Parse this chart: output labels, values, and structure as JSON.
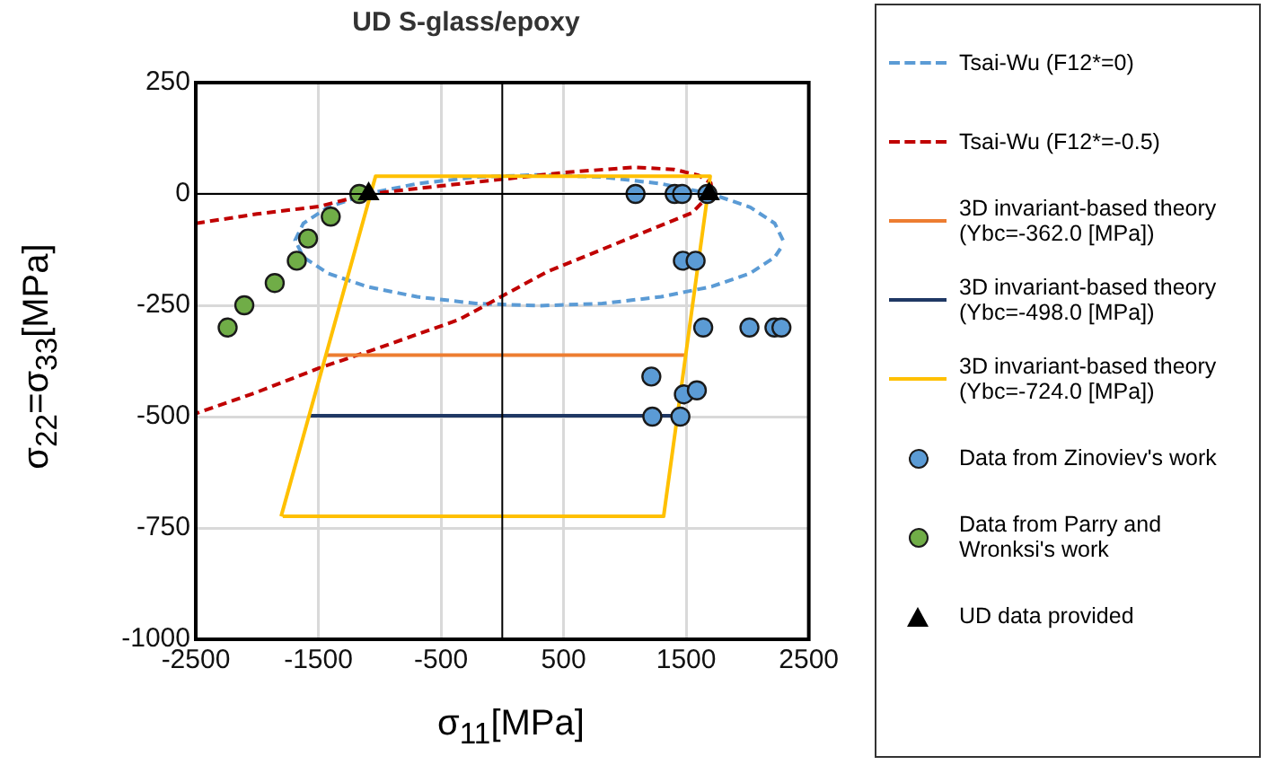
{
  "chart_data": {
    "type": "scatter",
    "title": "UD S-glass/epoxy",
    "xlabel": "σ$_{11}$[MPa]",
    "ylabel": "σ$_{22}$=σ$_{33}$[MPa]",
    "xlim": [
      -2500,
      2500
    ],
    "xticks": [
      -2500,
      -1500,
      -500,
      500,
      1500,
      2500
    ],
    "ylim": [
      -1000,
      250
    ],
    "yticks": [
      250,
      0,
      -250,
      -500,
      -750,
      -1000
    ],
    "grid": true,
    "legend": "right",
    "series": [
      {
        "name": "Tsai-Wu (F12*=0)",
        "type": "line",
        "color": "#5b9bd5",
        "line_style": "dashed",
        "marker": "none",
        "x": [
          2290,
          2222,
          2023,
          1707,
          1295,
          815,
          300,
          -215,
          -695,
          -1107,
          -1423,
          -1622,
          -1690,
          -1622,
          -1423,
          -1107,
          -695,
          -215,
          300,
          815,
          1295,
          1707,
          2023,
          2222,
          2282
        ],
        "values": [
          -104,
          -66,
          -30,
          0,
          23,
          38,
          43,
          38,
          23,
          0,
          -30,
          -66,
          -104,
          -142,
          -178,
          -208,
          -231,
          -246,
          -251,
          -246,
          -231,
          -208,
          -178,
          -142,
          -117
        ]
      },
      {
        "name": "Tsai-Wu (F12*=-0.5)",
        "type": "line",
        "color": "#c00000",
        "line_style": "dashed",
        "marker": "none",
        "x": [
          -2500,
          -2000,
          -1494,
          -1090,
          -500,
          0,
          500,
          1077,
          1400,
          1600,
          1700,
          1710,
          1680,
          1550,
          1077,
          363,
          -351,
          -1000,
          -1494,
          -2000,
          -2500
        ],
        "values": [
          -66,
          -45,
          -28,
          0,
          18,
          33,
          48,
          60,
          55,
          42,
          25,
          10,
          -5,
          -42,
          -95,
          -175,
          -282,
          -345,
          -391,
          -445,
          -493
        ]
      },
      {
        "name": "3D invariant-based theory (Ybc=-362.0 [MPa])",
        "type": "line",
        "color": "#ed7d31",
        "line_style": "solid",
        "marker": "none",
        "x": [
          -1439,
          1496
        ],
        "values": [
          -362,
          -362
        ]
      },
      {
        "name": "3D invariant-based theory (Ybc=-498.0 [MPa])",
        "type": "line",
        "color": "#1f3864",
        "line_style": "solid",
        "marker": "none",
        "x": [
          -1570,
          1440
        ],
        "values": [
          -498,
          -498
        ]
      },
      {
        "name": "3D invariant-based theory (Ybc=-724.0 [MPa])",
        "type": "line",
        "color": "#ffc000",
        "line_style": "solid",
        "marker": "none",
        "x": [
          -1804,
          -1033,
          1696,
          1316,
          -1790
        ],
        "values": [
          -724,
          40,
          40,
          -724,
          -724
        ]
      },
      {
        "name": "Data from Zinoviev's work",
        "type": "scatter",
        "color": "#5b9bd5",
        "marker": "circle",
        "x": [
          1087,
          1406,
          1467,
          1673,
          1473,
          1577,
          1639,
          2016,
          2220,
          2277,
          1216,
          1481,
          1587,
          1224,
          1453
        ],
        "values": [
          0,
          0,
          0,
          0,
          -150,
          -150,
          -300,
          -300,
          -300,
          -300,
          -410,
          -450,
          -441,
          -500,
          -500
        ]
      },
      {
        "name": "Data from Parry and Wronksi's work",
        "type": "scatter",
        "color": "#70ad47",
        "marker": "circle",
        "x": [
          -2240,
          -2104,
          -1856,
          -1676,
          -1584,
          -1399,
          -1166
        ],
        "values": [
          -300,
          -250,
          -200,
          -150,
          -100,
          -51,
          0
        ]
      },
      {
        "name": "UD data provided",
        "type": "scatter",
        "color": "#000000",
        "marker": "triangle",
        "x": [
          -1090,
          1687
        ],
        "values": [
          0,
          0
        ]
      }
    ]
  }
}
